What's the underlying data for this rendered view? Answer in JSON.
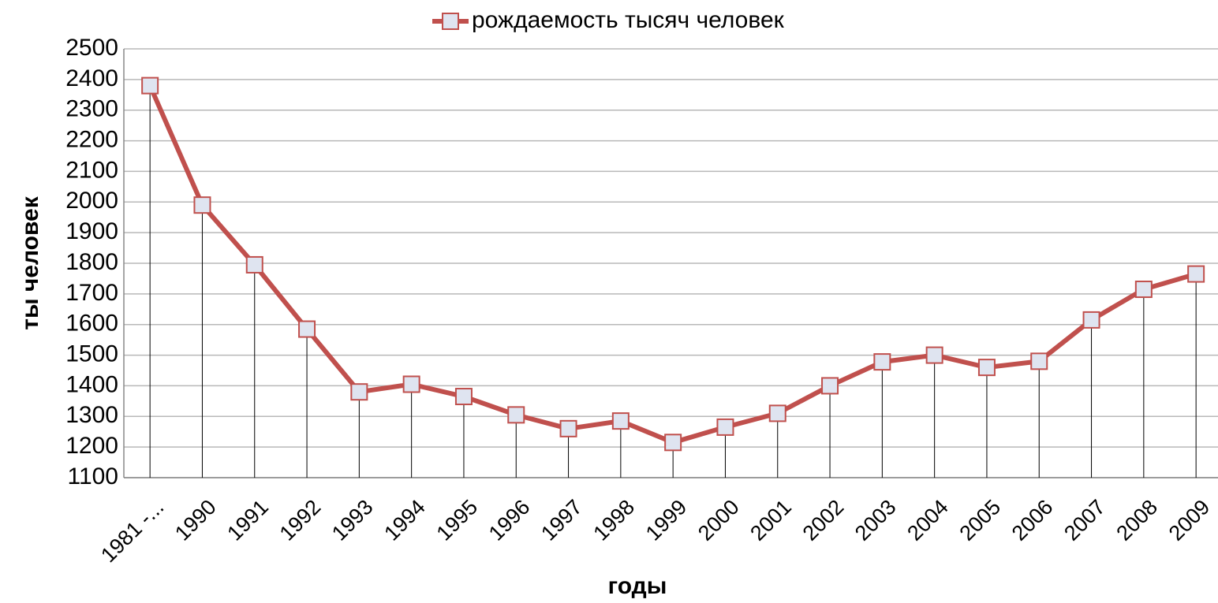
{
  "chart_data": {
    "type": "line",
    "x_label": "годы",
    "y_label": "ты человек",
    "categories": [
      "1981 -...",
      "1990",
      "1991",
      "1992",
      "1993",
      "1994",
      "1995",
      "1996",
      "1997",
      "1998",
      "1999",
      "2000",
      "2001",
      "2002",
      "2003",
      "2004",
      "2005",
      "2006",
      "2007",
      "2008",
      "2009"
    ],
    "series": [
      {
        "name": "рождаемость тысяч человек",
        "color": "#c0504d",
        "values": [
          2380,
          1990,
          1795,
          1585,
          1380,
          1405,
          1365,
          1305,
          1260,
          1285,
          1215,
          1265,
          1310,
          1400,
          1478,
          1500,
          1460,
          1480,
          1615,
          1715,
          1765
        ]
      }
    ],
    "ylim": [
      1100,
      2500
    ],
    "yticks": [
      1100,
      1200,
      1300,
      1400,
      1500,
      1600,
      1700,
      1800,
      1900,
      2000,
      2100,
      2200,
      2300,
      2400,
      2500
    ],
    "grid": true,
    "legend": "top",
    "drop_lines": true
  }
}
